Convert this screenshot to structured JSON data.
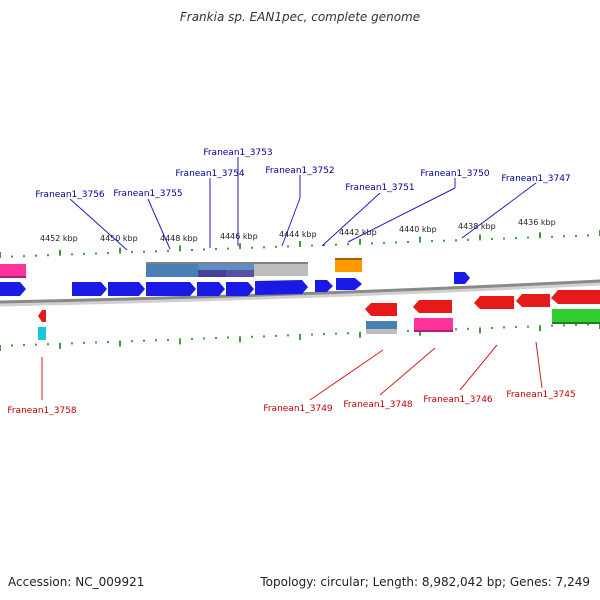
{
  "title": "Frankia sp. EAN1pec, complete genome",
  "footer": {
    "accession": "Accession: NC_009921",
    "summary": "Topology: circular; Length: 8,982,042 bp; Genes: 7,249"
  },
  "scale_labels": [
    "4452 kbp",
    "4450 kbp",
    "4448 kbp",
    "4446 kbp",
    "4444 kbp",
    "4442 kbp",
    "4440 kbp",
    "4438 kbp",
    "4436 kbp"
  ],
  "colors": {
    "forward_gene": "#1a1ae6",
    "reverse_gene": "#e61a1a",
    "axis": "#8a8a8a",
    "tick": "#007a00",
    "upper_label": "#00009a",
    "lower_label": "#c00000"
  },
  "upper_genes": [
    "Franean1_3753",
    "Franean1_3754",
    "Franean1_3752",
    "Franean1_3756",
    "Franean1_3755",
    "Franean1_3751",
    "Franean1_3750",
    "Franean1_3747"
  ],
  "lower_genes": [
    "Franean1_3758",
    "Franean1_3749",
    "Franean1_3748",
    "Franean1_3746",
    "Franean1_3745"
  ]
}
